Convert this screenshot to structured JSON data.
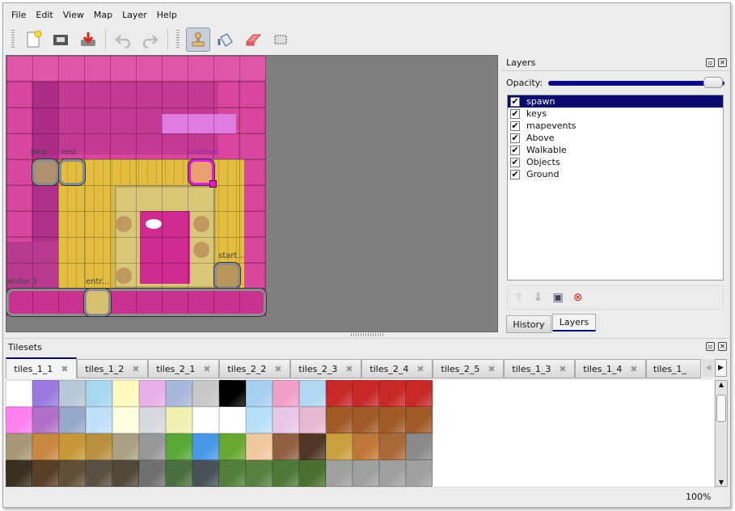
{
  "menu": [
    "File",
    "Edit",
    "View",
    "Map",
    "Layer",
    "Help"
  ],
  "toolbar": {
    "items": [
      {
        "icon": "new-file-icon"
      },
      {
        "icon": "open-folder-icon"
      },
      {
        "icon": "save-icon"
      },
      {
        "icon": "undo-icon"
      },
      {
        "icon": "redo-icon"
      },
      {
        "icon": "stamp-brush-icon",
        "active": true
      },
      {
        "icon": "bucket-fill-icon"
      },
      {
        "icon": "eraser-icon"
      },
      {
        "icon": "rectangle-select-icon"
      }
    ]
  },
  "map": {
    "objects": [
      {
        "name": "bed"
      },
      {
        "name": "rest"
      },
      {
        "name": "mikhail",
        "selected": true
      },
      {
        "name": "start..."
      },
      {
        "name": "andor:1"
      },
      {
        "name": "entr..."
      }
    ]
  },
  "layers_panel": {
    "title": "Layers",
    "opacity_label": "Opacity:",
    "opacity": 1.0,
    "layers": [
      {
        "name": "spawn",
        "visible": true,
        "selected": true
      },
      {
        "name": "keys",
        "visible": true
      },
      {
        "name": "mapevents",
        "visible": true
      },
      {
        "name": "Above",
        "visible": true
      },
      {
        "name": "Walkable",
        "visible": true
      },
      {
        "name": "Objects",
        "visible": true
      },
      {
        "name": "Ground",
        "visible": true
      }
    ],
    "buttons": [
      "move-layer-up-icon",
      "move-layer-down-icon",
      "duplicate-layer-icon",
      "remove-layer-icon"
    ],
    "tabs": [
      "History",
      "Layers"
    ],
    "active_tab": "Layers"
  },
  "tilesets_panel": {
    "title": "Tilesets",
    "tabs": [
      "tiles_1_1",
      "tiles_1_2",
      "tiles_2_1",
      "tiles_2_2",
      "tiles_2_3",
      "tiles_2_4",
      "tiles_2_5",
      "tiles_1_3",
      "tiles_1_4",
      "tiles_1_"
    ],
    "active_tab": "tiles_1_1"
  },
  "status": {
    "zoom": "100%"
  },
  "colors": {
    "selection": "#0a0a6e",
    "map_pink": "#d8469e",
    "floor": "#e0b840"
  }
}
